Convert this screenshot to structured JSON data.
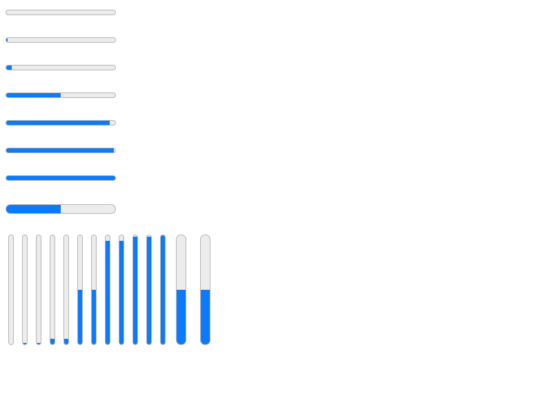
{
  "colors": {
    "accent": "#0a7aff",
    "track": "#ececec",
    "border": "#b4b4b4",
    "background": "#ffffff"
  },
  "horizontal_progress_bars": [
    {
      "value": 0.0
    },
    {
      "value": 0.01
    },
    {
      "value": 0.05
    },
    {
      "value": 0.5
    },
    {
      "value": 0.95
    },
    {
      "value": 0.99
    },
    {
      "value": 1.0
    },
    {
      "value": 0.5
    }
  ],
  "vertical_progress_bars": [
    {
      "value": 0.0
    },
    {
      "value": 0.01
    },
    {
      "value": 0.01
    },
    {
      "value": 0.05
    },
    {
      "value": 0.05
    },
    {
      "value": 0.5
    },
    {
      "value": 0.5
    },
    {
      "value": 0.95
    },
    {
      "value": 0.95
    },
    {
      "value": 0.99
    },
    {
      "value": 0.99
    },
    {
      "value": 1.0
    },
    {
      "value": 0.5
    },
    {
      "value": 0.5
    }
  ]
}
